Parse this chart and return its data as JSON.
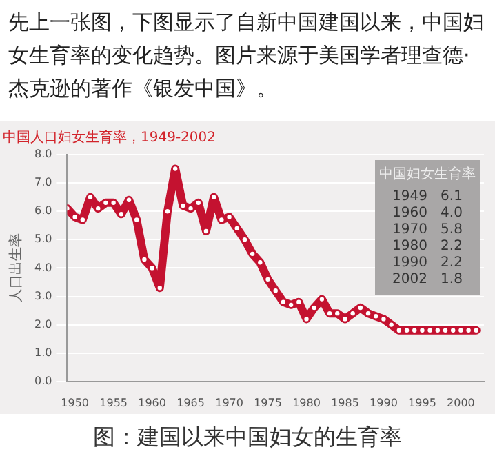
{
  "chart_data": {
    "type": "line",
    "title": "中国人口妇女生育率，1949-2002",
    "ylabel": "人口出生率",
    "annotations": [
      "先上一张图，下图显示了自新中国建国以来，中国妇女生育率的变化趋势。图片来源于美国学者理查德·杰克逊的著作《银发中国》。",
      "中国妇女生育率",
      "1949   6.1",
      "1960   4.0",
      "1970   5.8",
      "1980   2.2",
      "1990   2.2",
      "2002   1.8",
      "图：建国以来中国妇女的生育率"
    ],
    "x": [
      1949,
      1950,
      1951,
      1952,
      1953,
      1954,
      1955,
      1956,
      1957,
      1958,
      1959,
      1960,
      1961,
      1962,
      1963,
      1964,
      1965,
      1966,
      1967,
      1968,
      1969,
      1970,
      1971,
      1972,
      1973,
      1974,
      1975,
      1976,
      1977,
      1978,
      1979,
      1980,
      1981,
      1982,
      1983,
      1984,
      1985,
      1986,
      1987,
      1988,
      1989,
      1990,
      1991,
      1992,
      1993,
      1994,
      1995,
      1996,
      1997,
      1998,
      1999,
      2000,
      2001,
      2002
    ],
    "series": [
      {
        "color": "#c41230",
        "values": [
          6.1,
          5.8,
          5.7,
          6.5,
          6.1,
          6.3,
          6.3,
          5.9,
          6.4,
          5.7,
          4.3,
          4.0,
          3.3,
          6.0,
          7.5,
          6.2,
          6.1,
          6.3,
          5.3,
          6.5,
          5.7,
          5.8,
          5.4,
          5.0,
          4.5,
          4.2,
          3.6,
          3.2,
          2.8,
          2.7,
          2.8,
          2.2,
          2.6,
          2.9,
          2.4,
          2.4,
          2.2,
          2.4,
          2.6,
          2.4,
          2.3,
          2.2,
          2.0,
          1.8,
          1.8,
          1.8,
          1.8,
          1.8,
          1.8,
          1.8,
          1.8,
          1.8,
          1.8,
          1.8
        ]
      }
    ],
    "xlim": [
      1949,
      2003
    ],
    "xticks": [
      1950,
      1955,
      1960,
      1965,
      1970,
      1975,
      1980,
      1985,
      1990,
      1995,
      2000
    ],
    "ylim": [
      0,
      8
    ],
    "yticks": [
      {
        "value": 0,
        "label": "0.0"
      },
      {
        "value": 1,
        "label": "1.0"
      },
      {
        "value": 2,
        "label": "2.0"
      },
      {
        "value": 3,
        "label": "3.0"
      },
      {
        "value": 4,
        "label": "4.0"
      },
      {
        "value": 5,
        "label": "5.0"
      },
      {
        "value": 6,
        "label": "6.0"
      },
      {
        "value": 7,
        "label": "7.0"
      },
      {
        "value": 8,
        "label": "8.0"
      }
    ],
    "grid": "y",
    "marker": "circle",
    "line_style": "solid"
  }
}
